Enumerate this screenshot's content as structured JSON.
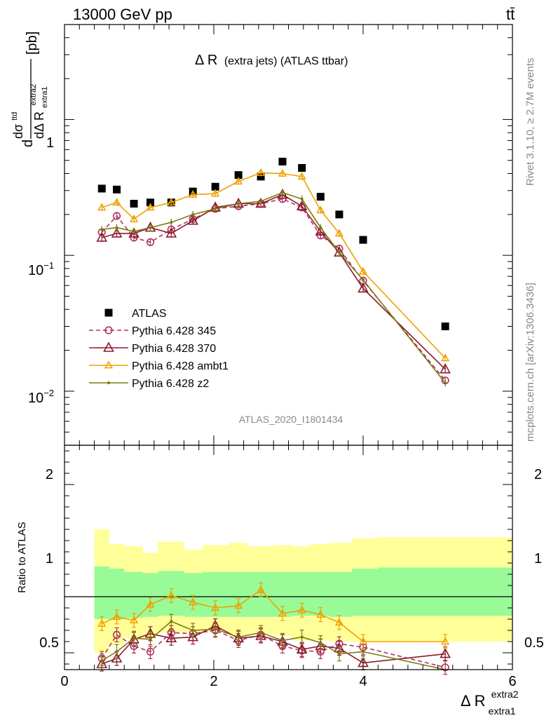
{
  "header": {
    "energy_label": "13000 GeV pp",
    "process_label": "tt̄",
    "plot_title": "Δ R",
    "plot_title_sub": "(extra jets) (ATLAS ttbar)",
    "analysis_id": "ATLAS_2020_I1801434",
    "side_top": "Rivet 3.1.10, ≥ 2.7M events",
    "side_bottom": "mcplots.cern.ch [arXiv:1306.3436]"
  },
  "axes": {
    "ylabel_main_num": "dσ",
    "ylabel_main_num_sup": "ttd",
    "ylabel_main_den": "dΔ R",
    "ylabel_main_den_sub": "extra1",
    "ylabel_main_den_sup": "extra2",
    "ylabel_main_unit": "[pb]",
    "ylabel_main_prefix": "d",
    "ylabel_ratio": "Ratio to ATLAS",
    "xlabel": "Δ R",
    "xlabel_sup": "extra2",
    "xlabel_sub": "extra1",
    "x_ticks": [
      "0",
      "2",
      "4",
      "6"
    ],
    "y_main_ticks": [
      "10",
      "1",
      "10"
    ],
    "y_main_tick_exp": [
      "−2",
      "",
      "−1"
    ],
    "y_ratio_ticks": [
      "0.5",
      "1",
      "2"
    ]
  },
  "colors": {
    "atlas": "#000000",
    "p345": "#b03060",
    "p370": "#8b1a2b",
    "ambt1": "#f0a000",
    "z2": "#7a7a10",
    "band_inner": "#98fb98",
    "band_outer": "#ffff99"
  },
  "chart_data": {
    "type": "scatter",
    "xlim": [
      0,
      6
    ],
    "ylim_main": [
      0.004,
      5
    ],
    "ylim_ratio": [
      0.35,
      2.35
    ],
    "y_scale_main": "log",
    "legend_position": "left-middle",
    "x": [
      0.5,
      0.7,
      0.93,
      1.15,
      1.43,
      1.72,
      2.02,
      2.33,
      2.63,
      2.92,
      3.18,
      3.43,
      3.68,
      4.0,
      5.1
    ],
    "bin_edges": [
      0.4,
      0.6,
      0.8,
      1.05,
      1.25,
      1.6,
      1.85,
      2.2,
      2.45,
      2.8,
      3.05,
      3.3,
      3.55,
      3.85,
      4.2,
      6.0
    ],
    "series": [
      {
        "name": "ATLAS",
        "key": "atlas",
        "marker": "square",
        "values": [
          0.31,
          0.305,
          0.24,
          0.245,
          0.245,
          0.295,
          0.32,
          0.39,
          0.38,
          0.49,
          0.44,
          0.27,
          0.2,
          0.13,
          0.03
        ]
      },
      {
        "name": "Pythia 6.428 345",
        "key": "p345",
        "marker": "circle",
        "dashed": true,
        "values": [
          0.148,
          0.195,
          0.135,
          0.125,
          0.155,
          0.185,
          0.22,
          0.23,
          0.24,
          0.26,
          0.225,
          0.14,
          0.112,
          0.065,
          0.012
        ],
        "ratio": [
          0.45,
          0.66,
          0.56,
          0.51,
          0.68,
          0.67,
          0.7,
          0.61,
          0.66,
          0.56,
          0.52,
          0.51,
          0.58,
          0.55,
          0.37
        ]
      },
      {
        "name": "Pythia 6.428 370",
        "key": "p370",
        "marker": "triangle",
        "values": [
          0.135,
          0.145,
          0.145,
          0.16,
          0.145,
          0.18,
          0.225,
          0.24,
          0.24,
          0.28,
          0.23,
          0.15,
          0.105,
          0.057,
          0.0145
        ],
        "ratio": [
          0.4,
          0.45,
          0.62,
          0.67,
          0.63,
          0.64,
          0.74,
          0.63,
          0.65,
          0.6,
          0.53,
          0.56,
          0.54,
          0.41,
          0.49
        ]
      },
      {
        "name": "Pythia 6.428 ambt1",
        "key": "ambt1",
        "marker": "triangle-open",
        "values": [
          0.225,
          0.245,
          0.185,
          0.225,
          0.245,
          0.28,
          0.285,
          0.35,
          0.405,
          0.4,
          0.38,
          0.215,
          0.145,
          0.076,
          0.0175
        ],
        "ratio": [
          0.76,
          0.82,
          0.79,
          0.93,
          1.01,
          0.95,
          0.9,
          0.92,
          1.06,
          0.85,
          0.88,
          0.84,
          0.77,
          0.6,
          0.6
        ]
      },
      {
        "name": "Pythia 6.428 z2",
        "key": "z2",
        "marker": "dot",
        "values": [
          0.155,
          0.16,
          0.15,
          0.16,
          0.175,
          0.2,
          0.22,
          0.24,
          0.25,
          0.29,
          0.26,
          0.16,
          0.105,
          0.066,
          0.0115
        ],
        "ratio": [
          0.43,
          0.51,
          0.63,
          0.62,
          0.78,
          0.7,
          0.71,
          0.64,
          0.68,
          0.61,
          0.64,
          0.59,
          0.49,
          0.51,
          0.34
        ]
      }
    ],
    "error_bands": {
      "inner_upper": [
        1.27,
        1.25,
        1.22,
        1.21,
        1.23,
        1.21,
        1.22,
        1.22,
        1.22,
        1.22,
        1.22,
        1.22,
        1.22,
        1.25,
        1.26
      ],
      "inner_lower": [
        0.8,
        0.8,
        0.81,
        0.82,
        0.83,
        0.82,
        0.82,
        0.82,
        0.82,
        0.82,
        0.83,
        0.83,
        0.82,
        0.83,
        0.83
      ],
      "outer_upper": [
        1.6,
        1.47,
        1.45,
        1.39,
        1.49,
        1.42,
        1.46,
        1.48,
        1.45,
        1.46,
        1.45,
        1.47,
        1.48,
        1.52,
        1.53
      ],
      "outer_lower": [
        0.5,
        0.57,
        0.63,
        0.64,
        0.68,
        0.68,
        0.69,
        0.65,
        0.67,
        0.65,
        0.61,
        0.61,
        0.6,
        0.6,
        0.6
      ]
    }
  }
}
